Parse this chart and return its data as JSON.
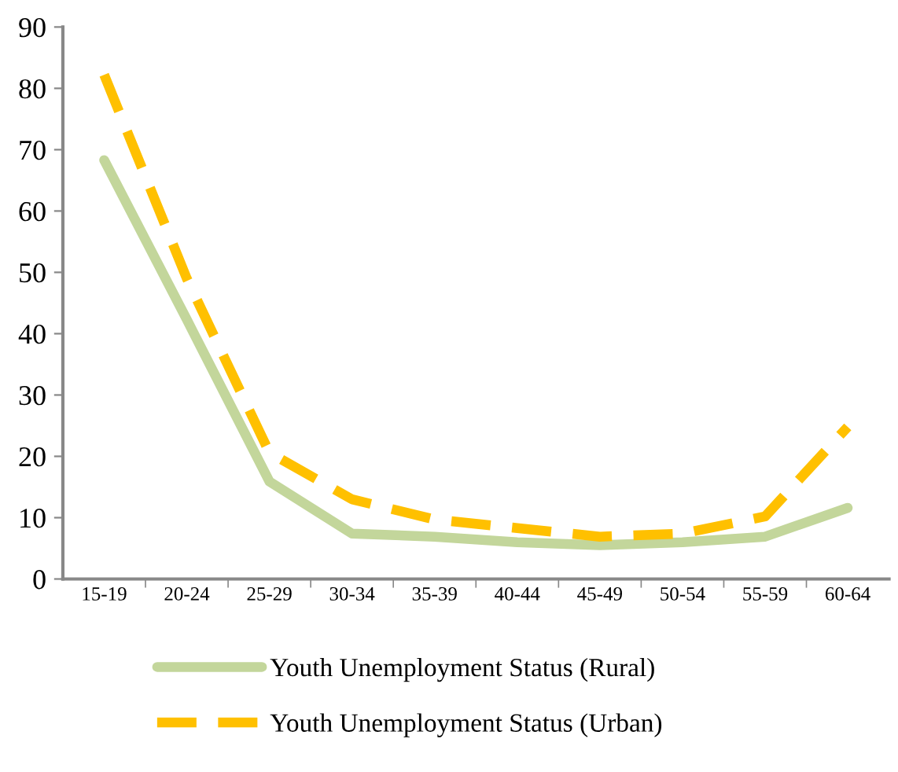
{
  "chart_data": {
    "type": "line",
    "categories": [
      "15-19",
      "20-24",
      "25-29",
      "30-34",
      "35-39",
      "40-44",
      "45-49",
      "50-54",
      "55-59",
      "60-64"
    ],
    "series": [
      {
        "name": "Youth Unemployment Status (Rural)",
        "color": "#c3d69b",
        "line_style": "solid",
        "values": [
          68.3,
          42.3,
          15.9,
          7.4,
          6.9,
          6.0,
          5.5,
          6.0,
          6.9,
          11.6
        ]
      },
      {
        "name": "Youth Unemployment Status (Urban)",
        "color": "#ffc000",
        "line_style": "dashed",
        "values": [
          82.2,
          49.0,
          20.6,
          13.0,
          9.7,
          8.3,
          6.9,
          7.4,
          10.2,
          24.8
        ]
      }
    ],
    "ylim": [
      0,
      90
    ],
    "yticks": [
      0,
      10,
      20,
      30,
      40,
      50,
      60,
      70,
      80,
      90
    ],
    "grid": false,
    "legend": "bottom",
    "marker": "none"
  }
}
